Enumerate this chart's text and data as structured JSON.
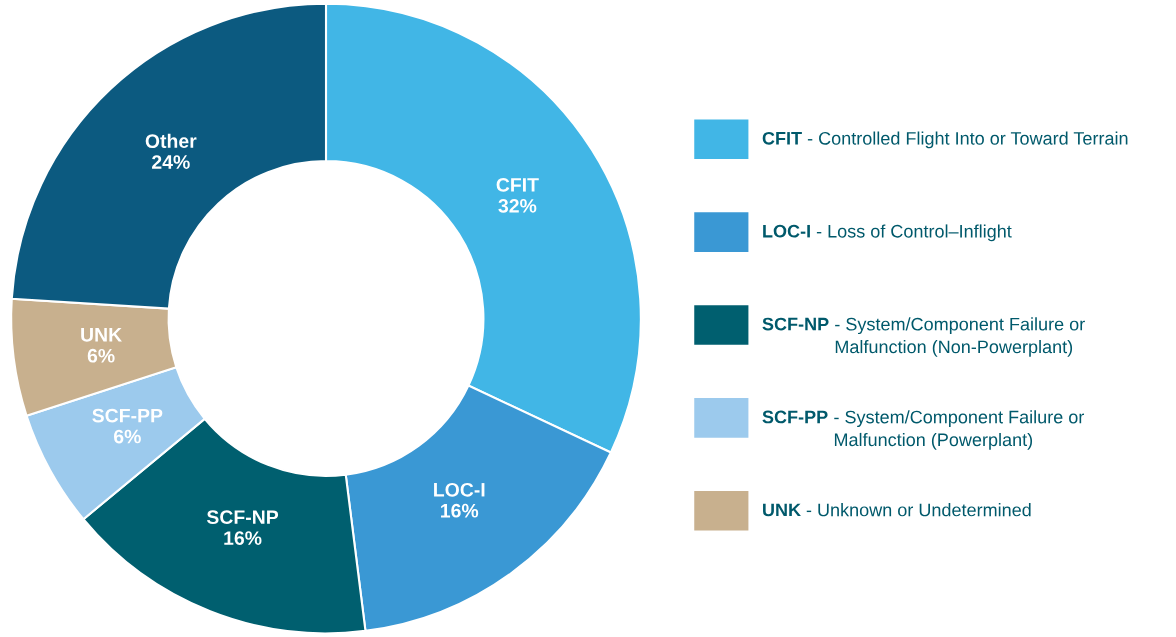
{
  "chart_data": {
    "type": "donut",
    "categories": [
      "CFIT",
      "LOC-I",
      "SCF-NP",
      "SCF-PP",
      "UNK",
      "Other"
    ],
    "values": [
      32,
      16,
      16,
      6,
      6,
      24
    ],
    "value_labels": [
      "32%",
      "16%",
      "16%",
      "6%",
      "6%",
      "24%"
    ],
    "colors": [
      "#41b6e6",
      "#3a98d4",
      "#005f6f",
      "#9ccaed",
      "#c8b08e",
      "#0c5a80"
    ],
    "legend": "right",
    "annotations": [
      "- Controlled Flight Into or Toward Terrain",
      "- Loss of Control–Inflight",
      "- System/Component Failure or Malfunction (Non-Powerplant)",
      "- System/Component Failure or Malfunction (Powerplant)",
      "- Unknown or Undetermined"
    ]
  }
}
